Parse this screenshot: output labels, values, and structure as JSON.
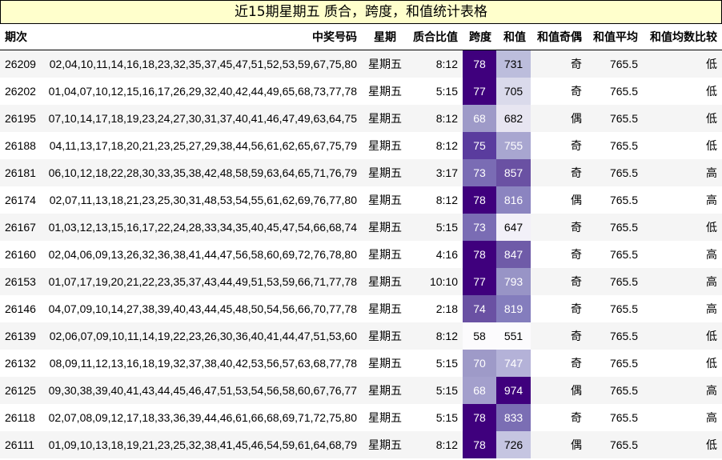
{
  "title": "近15期星期五 质合，跨度，和值统计表格",
  "headers": {
    "period": "期次",
    "numbers": "中奖号码",
    "weekday": "星期",
    "ratio": "质合比值",
    "span": "跨度",
    "sum": "和值",
    "parity": "和值奇偶",
    "avg": "和值平均",
    "compare": "和值均数比较"
  },
  "rows": [
    {
      "period": "26209",
      "numbers": "02,04,10,11,14,16,18,23,32,35,37,45,47,51,52,53,59,67,75,80",
      "weekday": "星期五",
      "ratio": "8:12",
      "span": "78",
      "sum": "731",
      "parity": "奇",
      "avg": "765.5",
      "compare": "低",
      "span_color": "#3f007d",
      "span_text": "#ffffff",
      "sum_color": "#bcbddc",
      "sum_text": "#000000"
    },
    {
      "period": "26202",
      "numbers": "01,04,07,10,12,15,16,17,26,29,32,40,42,44,49,65,68,73,77,78",
      "weekday": "星期五",
      "ratio": "5:15",
      "span": "77",
      "sum": "705",
      "parity": "奇",
      "avg": "765.5",
      "compare": "低",
      "span_color": "#3f007d",
      "span_text": "#ffffff",
      "sum_color": "#dadaeb",
      "sum_text": "#000000"
    },
    {
      "period": "26195",
      "numbers": "07,10,14,17,18,19,23,24,27,30,31,37,40,41,46,47,49,63,64,75",
      "weekday": "星期五",
      "ratio": "8:12",
      "span": "68",
      "sum": "682",
      "parity": "偶",
      "avg": "765.5",
      "compare": "低",
      "span_color": "#9e9ac8",
      "span_text": "#ffffff",
      "sum_color": "#e7e5f1",
      "sum_text": "#000000"
    },
    {
      "period": "26188",
      "numbers": "04,11,13,17,18,20,21,23,25,27,29,38,44,56,61,62,65,67,75,79",
      "weekday": "星期五",
      "ratio": "8:12",
      "span": "75",
      "sum": "755",
      "parity": "奇",
      "avg": "765.5",
      "compare": "低",
      "span_color": "#5a3c9e",
      "span_text": "#ffffff",
      "sum_color": "#a8a6d0",
      "sum_text": "#ffffff"
    },
    {
      "period": "26181",
      "numbers": "06,10,12,18,22,28,30,33,35,38,42,48,58,59,63,64,65,71,76,79",
      "weekday": "星期五",
      "ratio": "3:17",
      "span": "73",
      "sum": "857",
      "parity": "奇",
      "avg": "765.5",
      "compare": "高",
      "span_color": "#7a6cb4",
      "span_text": "#ffffff",
      "sum_color": "#6a51a3",
      "sum_text": "#ffffff"
    },
    {
      "period": "26174",
      "numbers": "02,07,11,13,18,21,23,25,30,31,48,53,54,55,61,62,69,76,77,80",
      "weekday": "星期五",
      "ratio": "8:12",
      "span": "78",
      "sum": "816",
      "parity": "偶",
      "avg": "765.5",
      "compare": "高",
      "span_color": "#3f007d",
      "span_text": "#ffffff",
      "sum_color": "#8b84c0",
      "sum_text": "#ffffff"
    },
    {
      "period": "26167",
      "numbers": "01,03,12,13,15,16,17,22,24,28,33,34,35,40,45,47,54,66,68,74",
      "weekday": "星期五",
      "ratio": "5:15",
      "span": "73",
      "sum": "647",
      "parity": "奇",
      "avg": "765.5",
      "compare": "低",
      "span_color": "#7a6cb4",
      "span_text": "#ffffff",
      "sum_color": "#f2f0f8",
      "sum_text": "#000000"
    },
    {
      "period": "26160",
      "numbers": "02,04,06,09,13,26,32,36,38,41,44,47,56,58,60,69,72,76,78,80",
      "weekday": "星期五",
      "ratio": "4:16",
      "span": "78",
      "sum": "847",
      "parity": "奇",
      "avg": "765.5",
      "compare": "高",
      "span_color": "#3f007d",
      "span_text": "#ffffff",
      "sum_color": "#6f5ba8",
      "sum_text": "#ffffff"
    },
    {
      "period": "26153",
      "numbers": "01,07,17,19,20,21,22,23,35,37,43,44,49,51,53,59,66,71,77,78",
      "weekday": "星期五",
      "ratio": "10:10",
      "span": "77",
      "sum": "793",
      "parity": "奇",
      "avg": "765.5",
      "compare": "高",
      "span_color": "#3f007d",
      "span_text": "#ffffff",
      "sum_color": "#9894c6",
      "sum_text": "#ffffff"
    },
    {
      "period": "26146",
      "numbers": "04,07,09,10,14,27,38,39,40,43,44,45,48,50,54,56,66,70,77,78",
      "weekday": "星期五",
      "ratio": "2:18",
      "span": "74",
      "sum": "819",
      "parity": "奇",
      "avg": "765.5",
      "compare": "高",
      "span_color": "#6a51a3",
      "span_text": "#ffffff",
      "sum_color": "#847dbd",
      "sum_text": "#ffffff"
    },
    {
      "period": "26139",
      "numbers": "02,06,07,09,10,11,14,19,22,23,26,30,36,40,41,44,47,51,53,60",
      "weekday": "星期五",
      "ratio": "8:12",
      "span": "58",
      "sum": "551",
      "parity": "奇",
      "avg": "765.5",
      "compare": "低",
      "span_color": "#fcfbfd",
      "span_text": "#000000",
      "sum_color": "#fcfbfd",
      "sum_text": "#000000"
    },
    {
      "period": "26132",
      "numbers": "08,09,11,12,13,16,18,19,32,37,38,40,42,53,56,57,63,68,77,78",
      "weekday": "星期五",
      "ratio": "5:15",
      "span": "70",
      "sum": "747",
      "parity": "奇",
      "avg": "765.5",
      "compare": "低",
      "span_color": "#9e9ac8",
      "span_text": "#ffffff",
      "sum_color": "#b4b2d8",
      "sum_text": "#ffffff"
    },
    {
      "period": "26125",
      "numbers": "09,30,38,39,40,41,43,44,45,46,47,51,53,54,56,58,60,67,76,77",
      "weekday": "星期五",
      "ratio": "5:15",
      "span": "68",
      "sum": "974",
      "parity": "偶",
      "avg": "765.5",
      "compare": "高",
      "span_color": "#a39fcc",
      "span_text": "#ffffff",
      "sum_color": "#3f007d",
      "sum_text": "#ffffff"
    },
    {
      "period": "26118",
      "numbers": "02,07,08,09,12,17,18,33,36,39,44,46,61,66,68,69,71,72,75,80",
      "weekday": "星期五",
      "ratio": "5:15",
      "span": "78",
      "sum": "833",
      "parity": "奇",
      "avg": "765.5",
      "compare": "高",
      "span_color": "#3f007d",
      "span_text": "#ffffff",
      "sum_color": "#7b6eb4",
      "sum_text": "#ffffff"
    },
    {
      "period": "26111",
      "numbers": "01,09,10,13,18,19,21,23,25,32,38,41,45,46,54,59,61,64,68,79",
      "weekday": "星期五",
      "ratio": "8:12",
      "span": "78",
      "sum": "726",
      "parity": "偶",
      "avg": "765.5",
      "compare": "低",
      "span_color": "#3f007d",
      "span_text": "#ffffff",
      "sum_color": "#c5c5e1",
      "sum_text": "#000000"
    }
  ]
}
